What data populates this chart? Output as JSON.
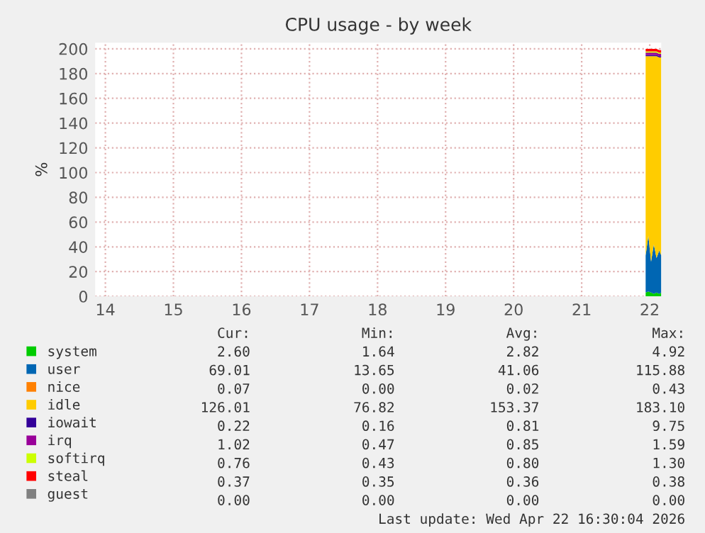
{
  "chart_data": {
    "type": "area",
    "stacked": true,
    "title": "CPU usage - by week",
    "ylabel": "%",
    "x": [
      21.94,
      21.98,
      22.02,
      22.06,
      22.1,
      22.14,
      22.17
    ],
    "series": [
      {
        "name": "system",
        "color": "#00cc00",
        "values": [
          3,
          4,
          3,
          2,
          3,
          2,
          3
        ]
      },
      {
        "name": "user",
        "color": "#0066b3",
        "values": [
          30,
          45,
          25,
          40,
          28,
          35,
          30
        ]
      },
      {
        "name": "nice",
        "color": "#ff8000",
        "values": [
          null,
          null,
          null,
          null,
          null,
          null,
          null
        ]
      },
      {
        "name": "idle",
        "color": "#ffcc00",
        "values": [
          161,
          145,
          166,
          152,
          163,
          156,
          160
        ]
      },
      {
        "name": "iowait",
        "color": "#330099",
        "values": [
          1,
          1,
          1,
          1,
          1,
          1,
          1
        ]
      },
      {
        "name": "irq",
        "color": "#990099",
        "values": [
          2,
          2,
          2,
          2,
          2,
          2,
          2
        ]
      },
      {
        "name": "softirq",
        "color": "#ccff00",
        "values": [
          1,
          1,
          1,
          1,
          1,
          1,
          1
        ]
      },
      {
        "name": "steal",
        "color": "#ff0000",
        "values": [
          2,
          2,
          2,
          2,
          2,
          2,
          2
        ]
      },
      {
        "name": "guest",
        "color": "#808080",
        "values": [
          null,
          null,
          null,
          null,
          null,
          null,
          null
        ]
      }
    ],
    "xlim": [
      13.85,
      22.17
    ],
    "xticks": [
      14,
      15,
      16,
      17,
      18,
      19,
      20,
      21,
      22
    ],
    "ylim": [
      0,
      205
    ],
    "yticks": [
      0,
      20,
      40,
      60,
      80,
      100,
      120,
      140,
      160,
      180,
      200
    ],
    "grid": true,
    "legend": "bottom left",
    "annotations": [
      "Cur:",
      "Min:",
      "Avg:",
      "Max:",
      "2.60",
      "1.64",
      "2.82",
      "4.92",
      "69.01",
      "13.65",
      "41.06",
      "115.88",
      "0.07",
      "0.00",
      "0.02",
      "0.43",
      "126.01",
      "76.82",
      "153.37",
      "183.10",
      "0.22",
      "0.16",
      "0.81",
      "9.75",
      "1.02",
      "0.47",
      "0.85",
      "1.59",
      "0.76",
      "0.43",
      "0.80",
      "1.30",
      "0.37",
      "0.35",
      "0.36",
      "0.38",
      "0.00",
      "0.00",
      "0.00",
      "0.00",
      "Last update: Wed Apr 22 16:30:04 2026"
    ]
  }
}
